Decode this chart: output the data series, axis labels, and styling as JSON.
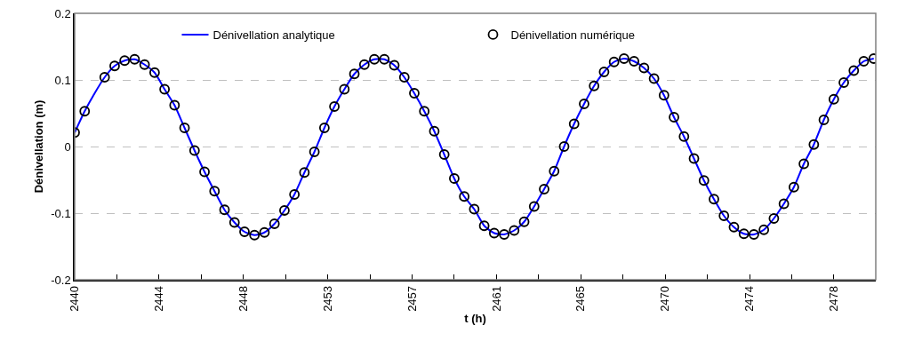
{
  "chart_data": {
    "type": "line",
    "xlabel": "t (h)",
    "ylabel": "Dénivellation (m)",
    "x": [
      2440,
      2440.5,
      2441,
      2441.5,
      2442,
      2442.5,
      2443,
      2443.5,
      2444,
      2444.5,
      2445,
      2445.5,
      2446,
      2446.5,
      2447,
      2447.5,
      2448,
      2448.5,
      2449,
      2449.5,
      2450,
      2450.5,
      2451,
      2451.5,
      2452,
      2452.5,
      2453,
      2453.5,
      2454,
      2454.5,
      2455,
      2455.5,
      2456,
      2456.5,
      2457,
      2457.5,
      2458,
      2458.5,
      2459,
      2459.5,
      2460,
      2460.5,
      2461,
      2461.5,
      2462,
      2462.5,
      2463,
      2463.5,
      2464,
      2464.5,
      2465,
      2465.5,
      2466,
      2466.5,
      2467,
      2467.5,
      2468,
      2468.5,
      2469,
      2469.5,
      2470,
      2470.5,
      2471,
      2471.5,
      2472,
      2472.5,
      2473,
      2473.5,
      2474,
      2474.5,
      2475,
      2475.5,
      2476,
      2476.5,
      2477,
      2477.5,
      2478,
      2478.5,
      2479,
      2479.5,
      2480
    ],
    "series": [
      {
        "name": "Dénivellation analytique",
        "color": "#0000ff",
        "marker": "none",
        "line_style": "solid",
        "values": [
          0.021,
          0.053,
          0.08,
          0.104,
          0.121,
          0.129,
          0.131,
          0.123,
          0.111,
          0.086,
          0.062,
          0.028,
          -0.006,
          -0.038,
          -0.067,
          -0.095,
          -0.114,
          -0.128,
          -0.133,
          -0.129,
          -0.116,
          -0.096,
          -0.072,
          -0.039,
          -0.008,
          0.028,
          0.06,
          0.086,
          0.109,
          0.123,
          0.131,
          0.131,
          0.122,
          0.104,
          0.08,
          0.053,
          0.023,
          -0.012,
          -0.048,
          -0.075,
          -0.094,
          -0.119,
          -0.13,
          -0.132,
          -0.126,
          -0.113,
          -0.09,
          -0.064,
          -0.037,
          0.0,
          0.034,
          0.064,
          0.091,
          0.112,
          0.127,
          0.132,
          0.128,
          0.118,
          0.102,
          0.077,
          0.044,
          0.015,
          -0.018,
          -0.051,
          -0.079,
          -0.104,
          -0.121,
          -0.131,
          -0.132,
          -0.125,
          -0.108,
          -0.086,
          -0.061,
          -0.026,
          0.003,
          0.04,
          0.071,
          0.096,
          0.114,
          0.128,
          0.132
        ]
      },
      {
        "name": "Dénivellation numérique",
        "type": "scatter",
        "color": "#000000",
        "marker": "circle",
        "values": [
          0.021,
          0.053,
          null,
          0.104,
          0.121,
          0.129,
          0.131,
          0.123,
          0.111,
          0.086,
          0.062,
          0.028,
          -0.006,
          -0.038,
          -0.067,
          -0.095,
          -0.114,
          -0.128,
          -0.133,
          -0.129,
          -0.116,
          -0.096,
          -0.072,
          -0.039,
          -0.008,
          0.028,
          0.06,
          0.086,
          0.109,
          0.123,
          0.131,
          0.131,
          0.122,
          0.104,
          0.08,
          0.053,
          0.023,
          -0.012,
          -0.048,
          -0.075,
          -0.094,
          -0.119,
          -0.13,
          -0.132,
          -0.126,
          -0.113,
          -0.09,
          -0.064,
          -0.037,
          0.0,
          0.034,
          0.064,
          0.091,
          0.112,
          0.127,
          0.132,
          0.128,
          0.118,
          0.102,
          0.077,
          0.044,
          0.015,
          -0.018,
          -0.051,
          -0.079,
          -0.104,
          -0.121,
          -0.131,
          -0.132,
          -0.125,
          -0.108,
          -0.086,
          -0.061,
          -0.026,
          0.003,
          0.04,
          0.071,
          0.096,
          0.114,
          0.128,
          0.132
        ]
      }
    ],
    "xlim": [
      2440,
      2480.1
    ],
    "xticks": [
      {
        "value": 2440,
        "label": "2440"
      },
      {
        "value": 2442.11,
        "label": null
      },
      {
        "value": 2444.22,
        "label": "2444"
      },
      {
        "value": 2446.33,
        "label": null
      },
      {
        "value": 2448.44,
        "label": "2448"
      },
      {
        "value": 2450.56,
        "label": null
      },
      {
        "value": 2452.67,
        "label": "2453"
      },
      {
        "value": 2454.78,
        "label": null
      },
      {
        "value": 2456.89,
        "label": "2457"
      },
      {
        "value": 2459,
        "label": null
      },
      {
        "value": 2461.11,
        "label": "2461"
      },
      {
        "value": 2463.22,
        "label": null
      },
      {
        "value": 2465.33,
        "label": "2465"
      },
      {
        "value": 2467.44,
        "label": null
      },
      {
        "value": 2469.56,
        "label": "2470"
      },
      {
        "value": 2471.67,
        "label": null
      },
      {
        "value": 2473.78,
        "label": "2474"
      },
      {
        "value": 2475.89,
        "label": null
      },
      {
        "value": 2478,
        "label": "2478"
      }
    ],
    "ylim": [
      -0.2,
      0.2
    ],
    "yticks": [
      -0.2,
      -0.1,
      0,
      0.1,
      0.2
    ],
    "grid": "y",
    "legend": "top"
  }
}
